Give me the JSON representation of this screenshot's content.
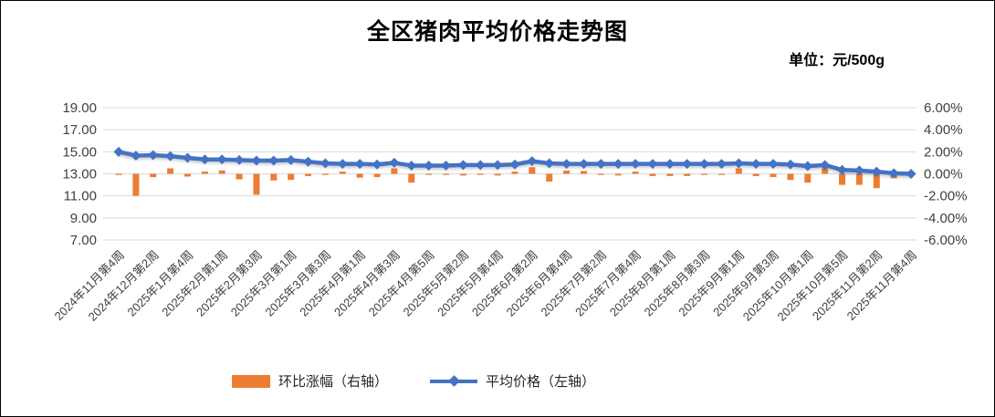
{
  "header": {
    "title": "全区猪肉平均价格走势图",
    "unit_label": "单位：元/500g"
  },
  "legend": [
    {
      "label": "环比涨幅（右轴）",
      "marker": "bar-swatch",
      "color": "#ED7D31"
    },
    {
      "label": "平均价格（左轴）",
      "marker": "line-diamond-swatch",
      "color": "#4472C4"
    }
  ],
  "chart_data": {
    "type": "combo",
    "title": "全区猪肉平均价格走势图",
    "unit": "元/500g",
    "grid": true,
    "gridline_color": "#D9D9D9",
    "axis_text_color": "#404040",
    "legend_position": "bottom",
    "left_axis": {
      "min": 7,
      "max": 19,
      "step": 2,
      "tick_labels": [
        "19.00",
        "17.00",
        "15.00",
        "13.00",
        "11.00",
        "9.00",
        "7.00"
      ]
    },
    "right_axis": {
      "min": -6,
      "max": 6,
      "step": 2,
      "tick_labels": [
        "6.00%",
        "4.00%",
        "2.00%",
        "0.00%",
        "-2.00%",
        "-4.00%",
        "-6.00%"
      ]
    },
    "x_label_interval": 2,
    "x_tick_labels": [
      "2024年11月第4周",
      "2024年12月第2周",
      "2025年1月第4周",
      "2025年2月第1周",
      "2025年2月第3周",
      "2025年3月第1周",
      "2025年3月第3周",
      "2025年4月第1周",
      "2025年4月第3周",
      "2025年4月第5周",
      "2025年5月第2周",
      "2025年5月第4周",
      "2025年6月第2周",
      "2025年6月第4周",
      "2025年7月第2周",
      "2025年7月第4周",
      "2025年8月第1周",
      "2025年8月第3周",
      "2025年9月第1周",
      "2025年9月第3周",
      "2025年10月第1周",
      "2025年10月第5周",
      "2025年11月第2周",
      "2025年11月第4周"
    ],
    "series": [
      {
        "name": "环比涨幅（右轴）",
        "type": "bar",
        "axis": "right",
        "color": "#ED7D31",
        "values": [
          -0.1,
          -2.0,
          -0.3,
          0.5,
          -0.25,
          0.2,
          0.3,
          -0.5,
          -1.9,
          -0.6,
          -0.55,
          -0.2,
          -0.1,
          0.2,
          -0.35,
          -0.3,
          0.5,
          -0.8,
          -0.1,
          -0.1,
          -0.15,
          -0.1,
          -0.15,
          0.2,
          0.6,
          -0.7,
          0.3,
          0.25,
          -0.1,
          -0.15,
          0.2,
          -0.2,
          -0.2,
          -0.2,
          -0.1,
          -0.1,
          0.5,
          -0.2,
          -0.3,
          -0.55,
          -0.8,
          0.5,
          -1.0,
          -1.0,
          -1.3,
          -0.4,
          -0.2
        ]
      },
      {
        "name": "平均价格（左轴）",
        "type": "line",
        "axis": "left",
        "marker": "diamond",
        "color": "#4472C4",
        "values": [
          15.0,
          14.65,
          14.7,
          14.6,
          14.45,
          14.3,
          14.3,
          14.25,
          14.2,
          14.2,
          14.25,
          14.1,
          13.95,
          13.9,
          13.9,
          13.85,
          14.0,
          13.75,
          13.75,
          13.75,
          13.8,
          13.8,
          13.8,
          13.85,
          14.15,
          13.95,
          13.9,
          13.9,
          13.9,
          13.9,
          13.9,
          13.9,
          13.9,
          13.9,
          13.9,
          13.9,
          13.95,
          13.9,
          13.9,
          13.85,
          13.7,
          13.8,
          13.35,
          13.3,
          13.2,
          13.05,
          13.0
        ]
      }
    ]
  }
}
